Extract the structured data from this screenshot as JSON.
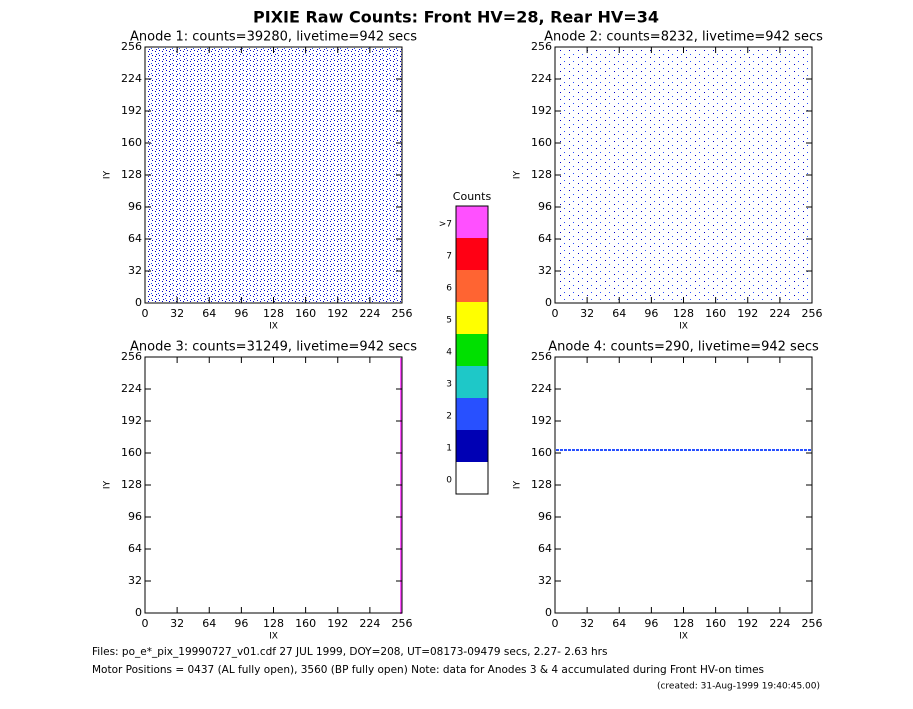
{
  "title": "PIXIE Raw Counts:  Front HV=28, Rear HV=34",
  "chart_data": [
    {
      "type": "heatmap",
      "title": "Anode 1: counts=39280, livetime=942 secs",
      "x_label": "IX",
      "y_label": "IY",
      "xlim": [
        0,
        256
      ],
      "ylim": [
        0,
        256
      ],
      "xticks": [
        0,
        32,
        64,
        96,
        128,
        160,
        192,
        224,
        256
      ],
      "yticks": [
        0,
        32,
        64,
        96,
        128,
        160,
        192,
        224,
        256
      ]
    },
    {
      "type": "heatmap",
      "title": "Anode 2: counts=8232, livetime=942 secs",
      "x_label": "IX",
      "y_label": "IY",
      "xlim": [
        0,
        256
      ],
      "ylim": [
        0,
        256
      ],
      "xticks": [
        0,
        32,
        64,
        96,
        128,
        160,
        192,
        224,
        256
      ],
      "yticks": [
        0,
        32,
        64,
        96,
        128,
        160,
        192,
        224,
        256
      ]
    },
    {
      "type": "heatmap",
      "title": "Anode 3: counts=31249, livetime=942 secs",
      "x_label": "IX",
      "y_label": "IY",
      "xlim": [
        0,
        256
      ],
      "ylim": [
        0,
        256
      ],
      "xticks": [
        0,
        32,
        64,
        96,
        128,
        160,
        192,
        224,
        256
      ],
      "yticks": [
        0,
        32,
        64,
        96,
        128,
        160,
        192,
        224,
        256
      ]
    },
    {
      "type": "heatmap",
      "title": "Anode 4: counts=290, livetime=942 secs",
      "x_label": "IX",
      "y_label": "IY",
      "xlim": [
        0,
        256
      ],
      "ylim": [
        0,
        256
      ],
      "xticks": [
        0,
        32,
        64,
        96,
        128,
        160,
        192,
        224,
        256
      ],
      "yticks": [
        0,
        32,
        64,
        96,
        128,
        160,
        192,
        224,
        256
      ]
    }
  ],
  "colorbar": {
    "title": "Counts",
    "labels": [
      "0",
      "1",
      "2",
      "3",
      "4",
      "5",
      "6",
      "7",
      ">7"
    ],
    "colors": [
      "#ffffff",
      "#0000b4",
      "#2850ff",
      "#1ec8c8",
      "#00e000",
      "#ffff00",
      "#ff6432",
      "#ff0014",
      "#ff50ff"
    ]
  },
  "footer": [
    "Files: po_e*_pix_19990727_v01.cdf   27 JUL 1999, DOY=208, UT=08173-09479 secs,  2.27- 2.63 hrs",
    "Motor Positions = 0437 (AL fully open), 3560 (BP fully open)    Note: data for Anodes 3 & 4 accumulated during Front HV-on times",
    "(created: 31-Aug-1999 19:40:45.00)"
  ]
}
